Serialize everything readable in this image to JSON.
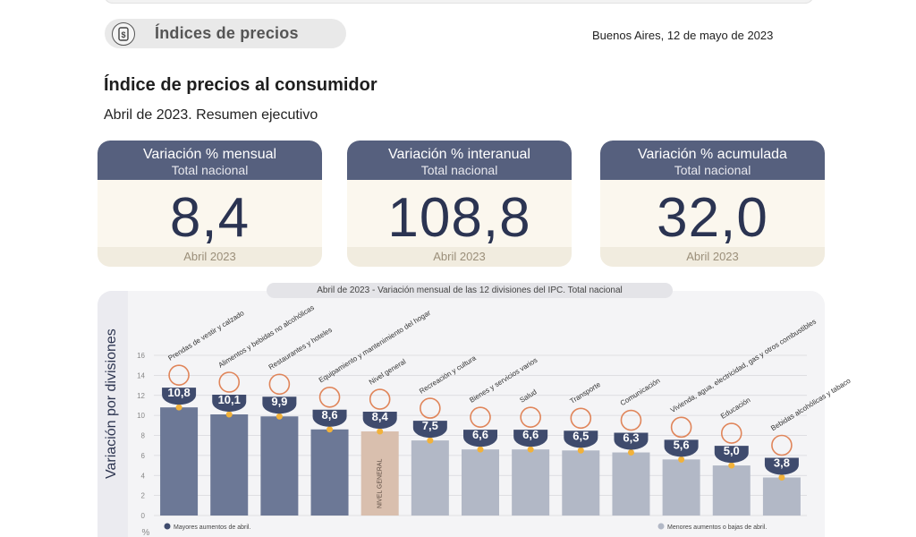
{
  "header": {
    "title": "Índices de precios",
    "date": "Buenos Aires, 12 de mayo de 2023"
  },
  "report": {
    "title": "Índice de precios al consumidor",
    "subtitle": "Abril de 2023. Resumen ejecutivo"
  },
  "cards": [
    {
      "title": "Variación % mensual",
      "scope": "Total nacional",
      "value": "8,4",
      "period": "Abril 2023"
    },
    {
      "title": "Variación % interanual",
      "scope": "Total nacional",
      "value": "108,8",
      "period": "Abril 2023"
    },
    {
      "title": "Variación % acumulada",
      "scope": "Total nacional",
      "value": "32,0",
      "period": "Abril 2023"
    }
  ],
  "colors": {
    "card_header": "#56607e",
    "bar_high": "#6c7896",
    "bar_low": "#b2b8c6",
    "bar_general": "#d9bfae",
    "badge": "#3f4b6d",
    "dot": "#f2b23a",
    "icon": "#e0855a"
  },
  "chart_data": {
    "type": "bar",
    "title": "Abril de 2023 - Variación mensual de las 12 divisiones del IPC. Total nacional",
    "ylabel": "Variación por divisiones",
    "yunit": "%",
    "ylim": [
      0,
      16
    ],
    "yticks": [
      0,
      2,
      4,
      6,
      8,
      10,
      12,
      14,
      16
    ],
    "grid": true,
    "categories": [
      "Prendas de vestir y calzado",
      "Alimentos y bebidas no alcohólicas",
      "Restaurantes y hoteles",
      "Equipamiento y mantenimiento del hogar",
      "Nivel general",
      "Recreación y cultura",
      "Bienes y servicios varios",
      "Salud",
      "Transporte",
      "Comunicación",
      "Vivienda, agua, electricidad, gas y otros combustibles",
      "Educación",
      "Bebidas alcohólicas y tabaco"
    ],
    "values": [
      10.8,
      10.1,
      9.9,
      8.6,
      8.4,
      7.5,
      6.6,
      6.6,
      6.5,
      6.3,
      5.6,
      5.0,
      3.8
    ],
    "value_labels": [
      "10,8",
      "10,1",
      "9,9",
      "8,6",
      "8,4",
      "7,5",
      "6,6",
      "6,6",
      "6,5",
      "6,3",
      "5,6",
      "5,0",
      "3,8"
    ],
    "general_bar_text": "NIVEL GENERAL",
    "legend": [
      {
        "label": "Mayores aumentos de abril.",
        "color": "#3f4b6d"
      },
      {
        "label": "Menores aumentos o bajas de abril.",
        "color": "#b2b8c6"
      }
    ]
  }
}
